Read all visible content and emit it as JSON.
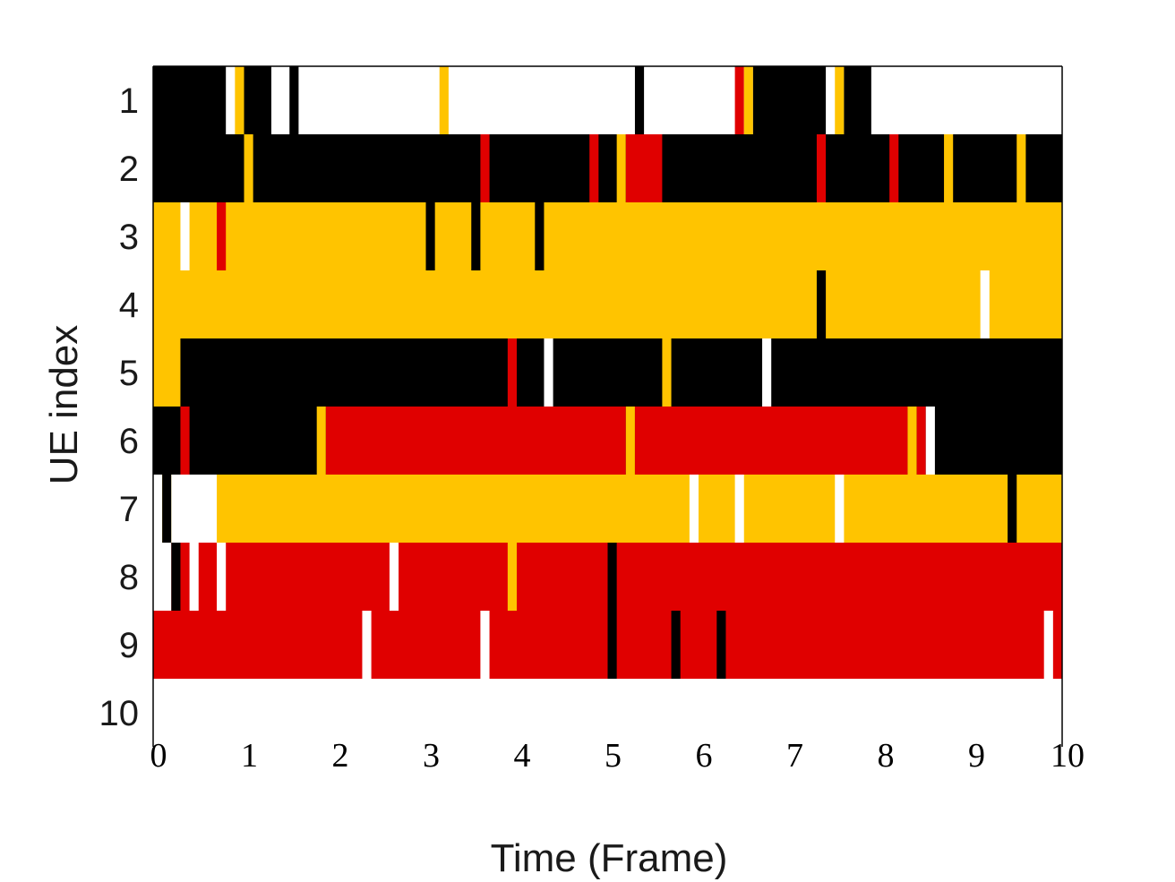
{
  "chart_data": {
    "type": "heatmap",
    "title": "",
    "xlabel": "Time (Frame)",
    "ylabel": "UE index",
    "xlim": [
      0,
      10
    ],
    "xticks": [
      "0",
      "1",
      "2",
      "3",
      "4",
      "5",
      "6",
      "7",
      "8",
      "9",
      "10"
    ],
    "yticks": [
      "1",
      "2",
      "3",
      "4",
      "5",
      "6",
      "7",
      "8",
      "9",
      "10"
    ],
    "grid": false,
    "legend": "none",
    "colors": {
      "black": "#000000",
      "yellow": "#ffc400",
      "red": "#e00000",
      "white": "#ffffff",
      "axis": "#000000"
    },
    "rows": [
      {
        "ue": "1",
        "default": "white",
        "segments": [
          {
            "start": 0,
            "end": 0.8,
            "color": "black"
          },
          {
            "start": 0.9,
            "end": 1.0,
            "color": "yellow"
          },
          {
            "start": 1.0,
            "end": 1.3,
            "color": "black"
          },
          {
            "start": 1.5,
            "end": 1.6,
            "color": "black"
          },
          {
            "start": 3.15,
            "end": 3.25,
            "color": "yellow"
          },
          {
            "start": 5.3,
            "end": 5.4,
            "color": "black"
          },
          {
            "start": 6.4,
            "end": 6.5,
            "color": "red"
          },
          {
            "start": 6.5,
            "end": 6.6,
            "color": "yellow"
          },
          {
            "start": 6.6,
            "end": 7.4,
            "color": "black"
          },
          {
            "start": 7.5,
            "end": 7.6,
            "color": "yellow"
          },
          {
            "start": 7.6,
            "end": 7.9,
            "color": "black"
          }
        ]
      },
      {
        "ue": "2",
        "default": "black",
        "segments": [
          {
            "start": 1.0,
            "end": 1.1,
            "color": "yellow"
          },
          {
            "start": 3.6,
            "end": 3.7,
            "color": "red"
          },
          {
            "start": 4.8,
            "end": 4.9,
            "color": "red"
          },
          {
            "start": 5.1,
            "end": 5.2,
            "color": "yellow"
          },
          {
            "start": 5.2,
            "end": 5.6,
            "color": "red"
          },
          {
            "start": 7.3,
            "end": 7.4,
            "color": "red"
          },
          {
            "start": 8.1,
            "end": 8.2,
            "color": "red"
          },
          {
            "start": 8.7,
            "end": 8.8,
            "color": "yellow"
          },
          {
            "start": 9.5,
            "end": 9.6,
            "color": "yellow"
          }
        ]
      },
      {
        "ue": "3",
        "default": "yellow",
        "segments": [
          {
            "start": 0.3,
            "end": 0.4,
            "color": "white"
          },
          {
            "start": 0.7,
            "end": 0.8,
            "color": "red"
          },
          {
            "start": 3.0,
            "end": 3.1,
            "color": "black"
          },
          {
            "start": 3.5,
            "end": 3.6,
            "color": "black"
          },
          {
            "start": 4.2,
            "end": 4.3,
            "color": "black"
          }
        ]
      },
      {
        "ue": "4",
        "default": "yellow",
        "segments": [
          {
            "start": 7.3,
            "end": 7.4,
            "color": "black"
          },
          {
            "start": 9.1,
            "end": 9.2,
            "color": "white"
          }
        ]
      },
      {
        "ue": "5",
        "default": "black",
        "segments": [
          {
            "start": 0,
            "end": 0.3,
            "color": "yellow"
          },
          {
            "start": 3.9,
            "end": 4.0,
            "color": "red"
          },
          {
            "start": 4.3,
            "end": 4.4,
            "color": "white"
          },
          {
            "start": 5.6,
            "end": 5.7,
            "color": "yellow"
          },
          {
            "start": 6.7,
            "end": 6.8,
            "color": "white"
          }
        ]
      },
      {
        "ue": "6",
        "default": "black",
        "segments": [
          {
            "start": 0.3,
            "end": 0.4,
            "color": "red"
          },
          {
            "start": 1.8,
            "end": 1.9,
            "color": "yellow"
          },
          {
            "start": 1.9,
            "end": 5.2,
            "color": "red"
          },
          {
            "start": 5.2,
            "end": 5.3,
            "color": "yellow"
          },
          {
            "start": 5.3,
            "end": 8.3,
            "color": "red"
          },
          {
            "start": 8.3,
            "end": 8.4,
            "color": "yellow"
          },
          {
            "start": 8.4,
            "end": 8.5,
            "color": "red"
          },
          {
            "start": 8.5,
            "end": 8.6,
            "color": "white"
          }
        ]
      },
      {
        "ue": "7",
        "default": "yellow",
        "segments": [
          {
            "start": 0,
            "end": 0.1,
            "color": "white"
          },
          {
            "start": 0.1,
            "end": 0.2,
            "color": "black"
          },
          {
            "start": 0.2,
            "end": 0.7,
            "color": "white"
          },
          {
            "start": 5.9,
            "end": 6.0,
            "color": "white"
          },
          {
            "start": 6.4,
            "end": 6.5,
            "color": "white"
          },
          {
            "start": 7.5,
            "end": 7.6,
            "color": "white"
          },
          {
            "start": 9.4,
            "end": 9.5,
            "color": "black"
          }
        ]
      },
      {
        "ue": "8",
        "default": "red",
        "segments": [
          {
            "start": 0,
            "end": 0.2,
            "color": "white"
          },
          {
            "start": 0.2,
            "end": 0.3,
            "color": "black"
          },
          {
            "start": 0.4,
            "end": 0.5,
            "color": "white"
          },
          {
            "start": 0.7,
            "end": 0.8,
            "color": "white"
          },
          {
            "start": 2.6,
            "end": 2.7,
            "color": "white"
          },
          {
            "start": 3.9,
            "end": 4.0,
            "color": "yellow"
          },
          {
            "start": 5.0,
            "end": 5.1,
            "color": "black"
          }
        ]
      },
      {
        "ue": "9",
        "default": "red",
        "segments": [
          {
            "start": 2.3,
            "end": 2.4,
            "color": "white"
          },
          {
            "start": 3.6,
            "end": 3.7,
            "color": "white"
          },
          {
            "start": 5.0,
            "end": 5.1,
            "color": "black"
          },
          {
            "start": 5.7,
            "end": 5.8,
            "color": "black"
          },
          {
            "start": 6.2,
            "end": 6.3,
            "color": "black"
          },
          {
            "start": 9.8,
            "end": 9.9,
            "color": "white"
          }
        ]
      },
      {
        "ue": "10",
        "default": "white",
        "segments": []
      }
    ]
  }
}
